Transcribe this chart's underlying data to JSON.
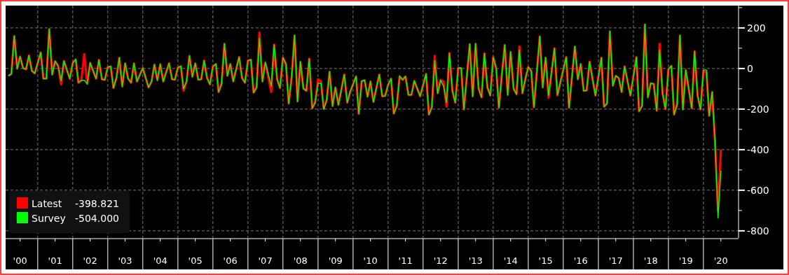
{
  "chart_data": {
    "type": "line",
    "x": [
      "2000-03",
      "2000-04",
      "2000-05",
      "2000-06",
      "2000-07",
      "2000-08",
      "2000-09",
      "2000-10",
      "2000-11",
      "2000-12",
      "2001-02",
      "2001-03",
      "2001-04",
      "2001-05",
      "2001-06",
      "2001-07",
      "2001-08",
      "2001-09",
      "2001-10",
      "2001-12",
      "2002-01",
      "2002-02",
      "2002-03",
      "2002-04",
      "2002-05",
      "2002-06",
      "2002-07",
      "2002-09",
      "2002-10",
      "2002-11",
      "2002-12",
      "2003-01",
      "2003-02",
      "2003-03",
      "2003-04",
      "2003-05",
      "2003-06",
      "2003-07",
      "2003-08",
      "2003-09",
      "2003-10",
      "2003-11",
      "2004-01",
      "2004-03",
      "2004-04",
      "2004-05",
      "2004-06",
      "2004-07",
      "2004-08",
      "2004-10",
      "2004-11",
      "2004-12",
      "2005-01",
      "2005-02",
      "2005-03",
      "2005-04",
      "2005-05",
      "2005-06",
      "2005-07",
      "2005-08",
      "2005-09",
      "2005-10",
      "2005-11",
      "2005-12",
      "2006-01",
      "2006-02",
      "2006-03",
      "2006-04",
      "2006-05",
      "2006-06",
      "2006-07",
      "2006-08",
      "2006-10",
      "2006-11",
      "2006-12",
      "2007-01",
      "2007-02",
      "2007-03",
      "2007-04",
      "2007-05",
      "2007-06",
      "2007-07",
      "2007-09",
      "2007-10",
      "2007-11",
      "2007-12",
      "2008-01",
      "2008-02",
      "2008-03",
      "2008-04",
      "2008-05",
      "2008-06",
      "2008-07",
      "2008-08",
      "2008-09",
      "2008-10",
      "2008-11",
      "2008-12",
      "2009-01",
      "2009-02",
      "2009-03",
      "2009-04",
      "2009-05",
      "2009-06",
      "2009-07",
      "2009-08",
      "2009-10",
      "2009-11",
      "2009-12",
      "2010-02",
      "2010-03",
      "2010-04",
      "2010-05",
      "2010-06",
      "2010-07",
      "2010-08",
      "2010-10",
      "2010-11",
      "2010-12",
      "2011-01",
      "2011-02",
      "2011-03",
      "2011-04",
      "2011-05",
      "2011-06",
      "2011-07",
      "2011-08",
      "2011-09",
      "2011-10",
      "2011-12",
      "2012-02",
      "2012-03",
      "2012-04",
      "2012-05",
      "2012-06",
      "2012-07",
      "2012-08",
      "2012-09",
      "2012-10",
      "2012-11",
      "2012-12",
      "2013-01",
      "2013-02",
      "2013-03",
      "2013-05",
      "2013-06",
      "2013-07",
      "2013-08",
      "2013-09",
      "2013-10",
      "2013-11",
      "2013-12",
      "2014-01",
      "2014-02",
      "2014-03",
      "2014-04",
      "2014-05",
      "2014-06",
      "2014-07",
      "2014-08",
      "2014-09",
      "2014-10",
      "2014-11",
      "2014-12",
      "2015-01",
      "2015-02",
      "2015-03",
      "2015-05",
      "2015-06",
      "2015-07",
      "2015-08",
      "2015-10",
      "2015-11",
      "2016-02",
      "2016-03",
      "2016-05",
      "2016-06",
      "2016-07",
      "2016-08",
      "2016-09",
      "2016-10",
      "2016-12",
      "2017-02",
      "2017-03",
      "2017-04",
      "2017-05",
      "2017-06",
      "2017-07",
      "2017-08",
      "2017-09",
      "2017-10",
      "2017-12",
      "2018-02",
      "2018-03",
      "2018-04",
      "2018-05",
      "2018-06",
      "2018-07",
      "2018-08",
      "2018-09",
      "2018-10",
      "2018-11",
      "2018-12",
      "2019-01",
      "2019-02",
      "2019-03",
      "2019-04",
      "2019-05",
      "2019-06",
      "2019-07",
      "2019-09",
      "2019-10",
      "2019-11",
      "2019-12",
      "2020-01",
      "2020-02",
      "2020-03",
      "2020-04",
      "2020-05",
      "2020-06",
      "2020-07"
    ],
    "series": [
      {
        "name": "Latest",
        "color": "#ff0000",
        "values": [
          -36,
          -27,
          160,
          -1,
          59,
          2,
          -4,
          64,
          -12,
          -24,
          79,
          -50,
          -50,
          194,
          -30,
          36,
          13,
          -78,
          37,
          -50,
          28,
          45,
          -70,
          -58,
          71,
          -76,
          28,
          -50,
          42,
          -53,
          -56,
          7,
          10,
          -96,
          -47,
          53,
          -89,
          25,
          -50,
          -70,
          25,
          -64,
          2,
          -93,
          -64,
          19,
          -58,
          21,
          -64,
          26,
          -53,
          -55,
          5,
          11,
          -110,
          -64,
          62,
          -41,
          25,
          -55,
          -53,
          39,
          -47,
          -78,
          10,
          22,
          -116,
          -76,
          122,
          -36,
          22,
          -64,
          56,
          -47,
          -70,
          39,
          43,
          -119,
          -93,
          177,
          -64,
          30,
          -116,
          117,
          -53,
          -96,
          53,
          22,
          -173,
          -41,
          163,
          -162,
          33,
          -99,
          -110,
          48,
          -196,
          -168,
          -53,
          -64,
          -196,
          -156,
          -16,
          -185,
          -93,
          -179,
          -30,
          -168,
          -116,
          -39,
          -223,
          -62,
          -58,
          -139,
          -64,
          -165,
          -30,
          -137,
          -135,
          -81,
          -50,
          -222,
          -185,
          -38,
          -56,
          -39,
          -130,
          -130,
          -61,
          -137,
          -27,
          -227,
          -191,
          62,
          -122,
          -58,
          -64,
          -188,
          76,
          -110,
          -168,
          2,
          2,
          -202,
          120,
          -137,
          122,
          -99,
          -142,
          74,
          -93,
          -133,
          56,
          -1,
          -193,
          -30,
          116,
          -130,
          82,
          -99,
          -127,
          108,
          -122,
          -53,
          7,
          -12,
          -191,
          158,
          -93,
          53,
          -145,
          99,
          -131,
          56,
          -193,
          108,
          -53,
          22,
          -110,
          -108,
          33,
          -133,
          53,
          -188,
          -173,
          183,
          -85,
          -36,
          -47,
          -116,
          10,
          -133,
          56,
          -211,
          -185,
          217,
          -142,
          -73,
          -76,
          -208,
          122,
          -122,
          -200,
          -4,
          13,
          -227,
          -179,
          163,
          -202,
          -7,
          -196,
          85,
          -133,
          -202,
          -12,
          -20,
          -233,
          -116,
          -363,
          -700,
          -399
        ]
      },
      {
        "name": "Survey",
        "color": "#00ff00",
        "values": [
          -36,
          -27,
          160,
          -1,
          59,
          2,
          -4,
          64,
          -12,
          -24,
          79,
          -50,
          -50,
          194,
          -30,
          36,
          13,
          -60,
          37,
          -50,
          28,
          45,
          -70,
          -58,
          -58,
          -76,
          28,
          -50,
          42,
          -53,
          -56,
          7,
          10,
          -96,
          -47,
          53,
          -89,
          25,
          -50,
          -70,
          25,
          -64,
          2,
          -93,
          -64,
          19,
          -58,
          21,
          -64,
          26,
          -53,
          -55,
          5,
          11,
          -100,
          -64,
          62,
          -41,
          25,
          -55,
          -53,
          39,
          -47,
          -78,
          10,
          22,
          -116,
          -76,
          122,
          -36,
          22,
          -64,
          56,
          -47,
          -70,
          39,
          43,
          -119,
          -93,
          148,
          -64,
          30,
          -87,
          117,
          -53,
          -96,
          53,
          22,
          -173,
          -41,
          163,
          -162,
          33,
          -99,
          -110,
          48,
          -196,
          -168,
          -73,
          -73,
          -202,
          -156,
          -16,
          -185,
          -93,
          -179,
          -30,
          -168,
          -116,
          -39,
          -223,
          -62,
          -58,
          -139,
          -64,
          -165,
          -30,
          -137,
          -135,
          -81,
          -50,
          -222,
          -185,
          -38,
          -56,
          -39,
          -130,
          -130,
          -61,
          -137,
          -27,
          -227,
          -191,
          39,
          -122,
          -58,
          -87,
          -168,
          76,
          -110,
          -168,
          2,
          2,
          -202,
          120,
          -137,
          122,
          -99,
          -142,
          74,
          -93,
          -133,
          56,
          -1,
          -193,
          -30,
          116,
          -130,
          82,
          -99,
          -127,
          91,
          -122,
          -53,
          7,
          -12,
          -191,
          158,
          -93,
          53,
          -133,
          99,
          -131,
          56,
          -193,
          108,
          -53,
          22,
          -110,
          -108,
          33,
          -133,
          53,
          -188,
          -173,
          183,
          -85,
          -36,
          -47,
          -116,
          10,
          -133,
          56,
          -211,
          -185,
          217,
          -142,
          -73,
          -76,
          -208,
          91,
          -122,
          -200,
          -4,
          13,
          -227,
          -179,
          163,
          -202,
          -7,
          -196,
          85,
          -133,
          -202,
          -7,
          -7,
          -233,
          -116,
          -363,
          -736,
          -504
        ]
      }
    ],
    "xlim": [
      "2000-02",
      "2021-01"
    ],
    "xticks": [
      {
        "value": "2000-07",
        "label": "'00"
      },
      {
        "value": "2001-01",
        "label": null
      },
      {
        "value": "2001-07",
        "label": "'01"
      },
      {
        "value": "2002-01",
        "label": null
      },
      {
        "value": "2002-07",
        "label": "'02"
      },
      {
        "value": "2003-01",
        "label": null
      },
      {
        "value": "2003-07",
        "label": "'03"
      },
      {
        "value": "2004-01",
        "label": null
      },
      {
        "value": "2004-07",
        "label": "'04"
      },
      {
        "value": "2005-01",
        "label": null
      },
      {
        "value": "2005-07",
        "label": "'05"
      },
      {
        "value": "2006-01",
        "label": null
      },
      {
        "value": "2006-07",
        "label": "'06"
      },
      {
        "value": "2007-01",
        "label": null
      },
      {
        "value": "2007-07",
        "label": "'07"
      },
      {
        "value": "2008-01",
        "label": null
      },
      {
        "value": "2008-07",
        "label": "'08"
      },
      {
        "value": "2009-01",
        "label": null
      },
      {
        "value": "2009-07",
        "label": "'09"
      },
      {
        "value": "2010-01",
        "label": null
      },
      {
        "value": "2010-07",
        "label": "'10"
      },
      {
        "value": "2011-01",
        "label": null
      },
      {
        "value": "2011-07",
        "label": "'11"
      },
      {
        "value": "2012-01",
        "label": null
      },
      {
        "value": "2012-07",
        "label": "'12"
      },
      {
        "value": "2013-01",
        "label": null
      },
      {
        "value": "2013-07",
        "label": "'13"
      },
      {
        "value": "2014-01",
        "label": null
      },
      {
        "value": "2014-07",
        "label": "'14"
      },
      {
        "value": "2015-01",
        "label": null
      },
      {
        "value": "2015-07",
        "label": "'15"
      },
      {
        "value": "2016-01",
        "label": null
      },
      {
        "value": "2016-07",
        "label": "'16"
      },
      {
        "value": "2017-01",
        "label": null
      },
      {
        "value": "2017-07",
        "label": "'17"
      },
      {
        "value": "2018-01",
        "label": null
      },
      {
        "value": "2018-07",
        "label": "'18"
      },
      {
        "value": "2019-01",
        "label": null
      },
      {
        "value": "2019-07",
        "label": "'19"
      },
      {
        "value": "2020-01",
        "label": null
      },
      {
        "value": "2020-07",
        "label": "'20"
      }
    ],
    "ylim": [
      -835,
      310
    ],
    "yticks": [
      {
        "value": 300,
        "label": null
      },
      200,
      {
        "value": 100,
        "label": null
      },
      0,
      {
        "value": -100,
        "label": null
      },
      -200,
      {
        "value": -300,
        "label": null
      },
      -400,
      {
        "value": -500,
        "label": null
      },
      -600,
      {
        "value": -700,
        "label": null
      },
      -800
    ],
    "grid": true,
    "legend": "bottom left",
    "annotations": [
      "-398.821",
      "-504.000"
    ]
  }
}
